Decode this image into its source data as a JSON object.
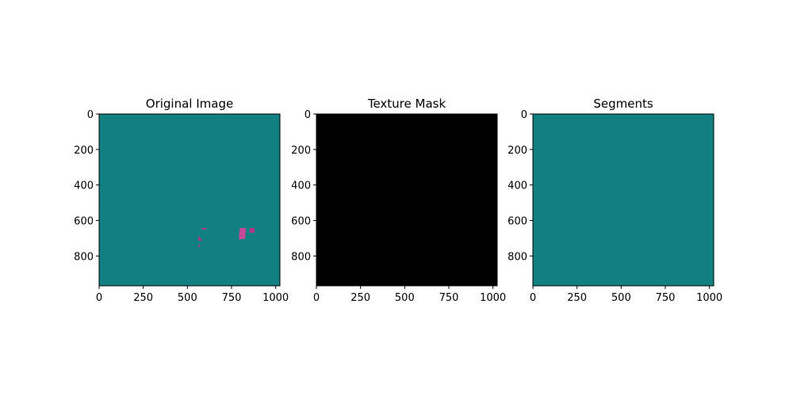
{
  "colors": {
    "teal": "#118080",
    "magenta": "#b5378a",
    "magenta_light": "#c44a98",
    "mask": "#000000",
    "boundary": "#0d4040"
  },
  "chart_data": [
    {
      "type": "image",
      "title": "Original Image",
      "xlabel": "",
      "ylabel": "",
      "xlim": [
        0,
        1024
      ],
      "ylim": [
        968,
        0
      ],
      "xticks": [
        "0",
        "250",
        "500",
        "750",
        "1000"
      ],
      "yticks": [
        "0",
        "200",
        "400",
        "600",
        "800"
      ],
      "content": "teal background with magenta striped pattern"
    },
    {
      "type": "image",
      "title": "Texture Mask",
      "xlabel": "",
      "ylabel": "",
      "xlim": [
        0,
        1024
      ],
      "ylim": [
        968,
        0
      ],
      "xticks": [
        "0",
        "250",
        "500",
        "750",
        "1000"
      ],
      "yticks": [
        "0",
        "200",
        "400",
        "600",
        "800"
      ],
      "content": "all black"
    },
    {
      "type": "image",
      "title": "Segments",
      "xlabel": "",
      "ylabel": "",
      "xlim": [
        0,
        1024
      ],
      "ylim": [
        968,
        0
      ],
      "xticks": [
        "0",
        "250",
        "500",
        "750",
        "1000"
      ],
      "yticks": [
        "0",
        "200",
        "400",
        "600",
        "800"
      ],
      "content": "original image with segment boundaries overlaid"
    }
  ]
}
